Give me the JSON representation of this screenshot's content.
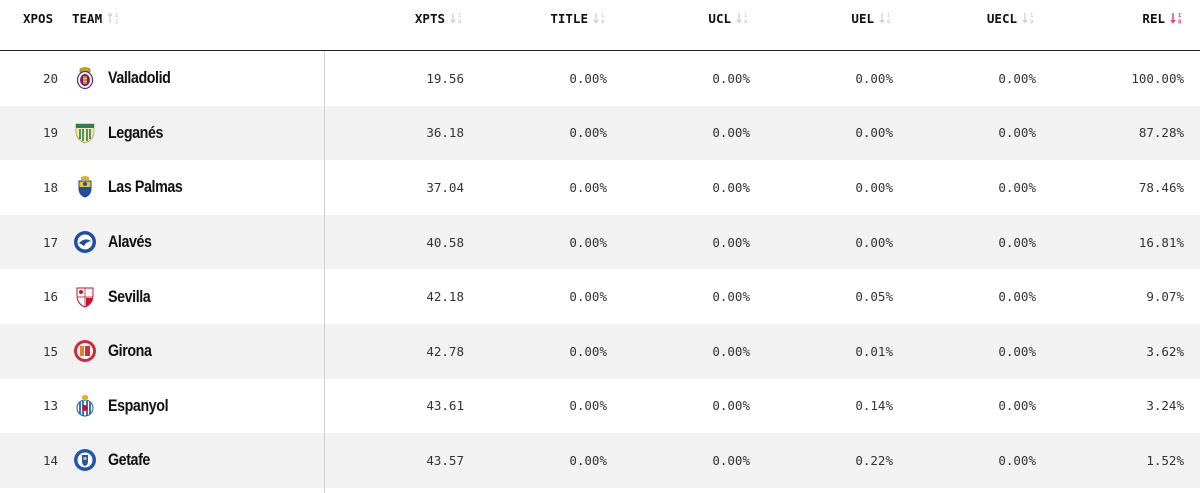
{
  "columns": {
    "xpos": "XPOS",
    "team": "TEAM",
    "xpts": "XPTS",
    "title": "TITLE",
    "ucl": "UCL",
    "uel": "UEL",
    "uecl": "UECL",
    "rel": "REL"
  },
  "active_sort": {
    "column": "rel",
    "direction": "descending",
    "color": "#e8327c"
  },
  "rows": [
    {
      "xpos": "20",
      "team": "Valladolid",
      "logo": "valladolid-crest-icon",
      "xpts": "19.56",
      "title": "0.00%",
      "ucl": "0.00%",
      "uel": "0.00%",
      "uecl": "0.00%",
      "rel": "100.00%"
    },
    {
      "xpos": "19",
      "team": "Leganés",
      "logo": "leganes-crest-icon",
      "xpts": "36.18",
      "title": "0.00%",
      "ucl": "0.00%",
      "uel": "0.00%",
      "uecl": "0.00%",
      "rel": "87.28%"
    },
    {
      "xpos": "18",
      "team": "Las Palmas",
      "logo": "las-palmas-crest-icon",
      "xpts": "37.04",
      "title": "0.00%",
      "ucl": "0.00%",
      "uel": "0.00%",
      "uecl": "0.00%",
      "rel": "78.46%"
    },
    {
      "xpos": "17",
      "team": "Alavés",
      "logo": "alaves-crest-icon",
      "xpts": "40.58",
      "title": "0.00%",
      "ucl": "0.00%",
      "uel": "0.00%",
      "uecl": "0.00%",
      "rel": "16.81%"
    },
    {
      "xpos": "16",
      "team": "Sevilla",
      "logo": "sevilla-crest-icon",
      "xpts": "42.18",
      "title": "0.00%",
      "ucl": "0.00%",
      "uel": "0.05%",
      "uecl": "0.00%",
      "rel": "9.07%"
    },
    {
      "xpos": "15",
      "team": "Girona",
      "logo": "girona-crest-icon",
      "xpts": "42.78",
      "title": "0.00%",
      "ucl": "0.00%",
      "uel": "0.01%",
      "uecl": "0.00%",
      "rel": "3.62%"
    },
    {
      "xpos": "13",
      "team": "Espanyol",
      "logo": "espanyol-crest-icon",
      "xpts": "43.61",
      "title": "0.00%",
      "ucl": "0.00%",
      "uel": "0.14%",
      "uecl": "0.00%",
      "rel": "3.24%"
    },
    {
      "xpos": "14",
      "team": "Getafe",
      "logo": "getafe-crest-icon",
      "xpts": "43.57",
      "title": "0.00%",
      "ucl": "0.00%",
      "uel": "0.22%",
      "uecl": "0.00%",
      "rel": "1.52%"
    }
  ]
}
